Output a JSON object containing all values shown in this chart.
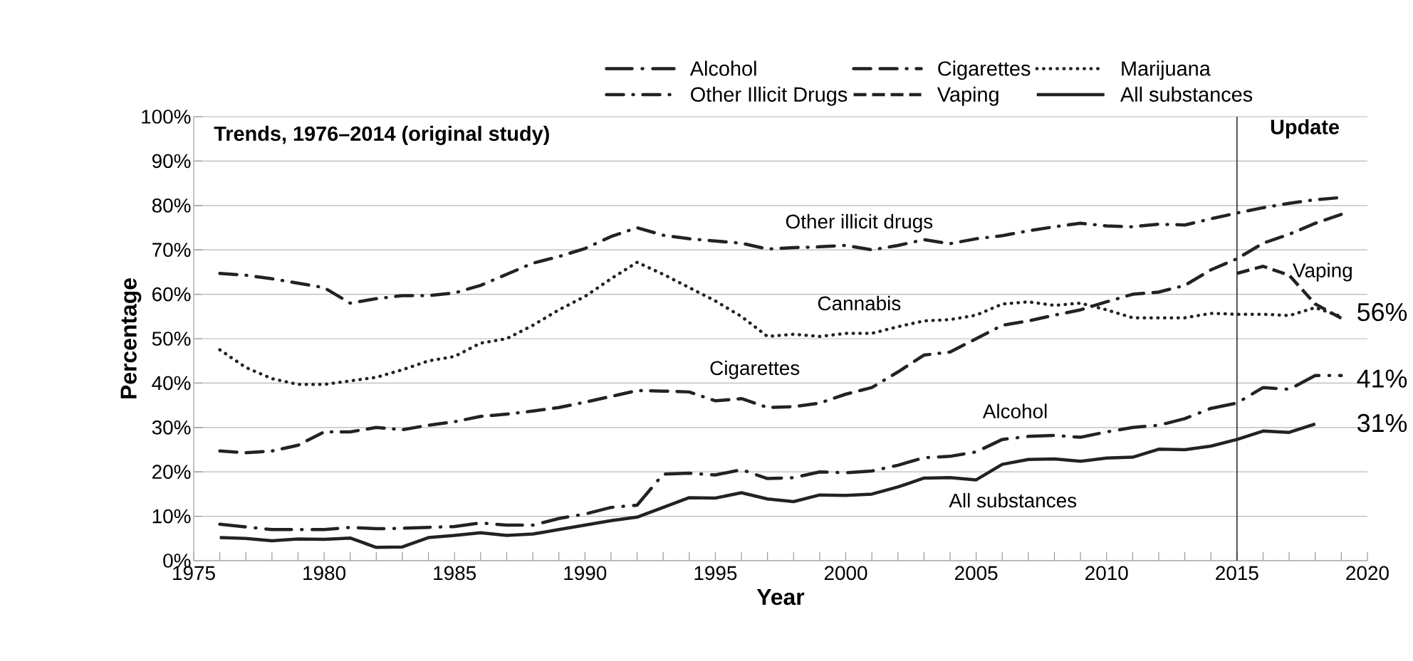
{
  "chart_data": {
    "type": "line",
    "title": "Trends, 1976–2014 (original study)",
    "xlabel": "Year",
    "ylabel": "Percentage",
    "x": [
      1976,
      1977,
      1978,
      1979,
      1980,
      1981,
      1982,
      1983,
      1984,
      1985,
      1986,
      1987,
      1988,
      1989,
      1990,
      1991,
      1992,
      1993,
      1994,
      1995,
      1996,
      1997,
      1998,
      1999,
      2000,
      2001,
      2002,
      2003,
      2004,
      2005,
      2006,
      2007,
      2008,
      2009,
      2010,
      2011,
      2012,
      2013,
      2014,
      2015,
      2016,
      2017,
      2018,
      2019
    ],
    "series": [
      {
        "name": "Alcohol",
        "color": "#222222",
        "line_style": "longdashdot",
        "values": [
          8.2,
          7.6,
          7.0,
          7.0,
          7.0,
          7.5,
          7.2,
          7.3,
          7.5,
          7.7,
          8.5,
          8.0,
          8.0,
          9.5,
          10.5,
          12,
          12.5,
          19.5,
          19.7,
          19.3,
          20.5,
          18.5,
          18.7,
          20,
          19.8,
          20.2,
          21.5,
          23.2,
          23.5,
          24.5,
          27.3,
          28,
          28.2,
          27.8,
          29,
          30,
          30.5,
          32,
          34.3,
          35.5,
          39,
          38.6,
          41.7,
          41.7
        ]
      },
      {
        "name": "Cigarettes",
        "color": "#222222",
        "line_style": "dashdashdot",
        "values": [
          24.7,
          24.3,
          24.7,
          26,
          29,
          29,
          30,
          29.5,
          30.5,
          31.3,
          32.5,
          33,
          33.7,
          34.5,
          35.7,
          37,
          38.3,
          38.2,
          38,
          36,
          36.5,
          34.5,
          34.7,
          35.5,
          37.5,
          39,
          42.5,
          46.3,
          47,
          50,
          53,
          54,
          55.3,
          56.5,
          58.3,
          60,
          60.5,
          62,
          65.5,
          68,
          71.5,
          73.5,
          76,
          78
        ]
      },
      {
        "name": "Marijuana",
        "color": "#222222",
        "line_style": "dotted",
        "values": [
          47.5,
          43.5,
          41,
          39.7,
          39.7,
          40.5,
          41.3,
          43,
          45,
          46,
          49,
          50,
          53,
          56.5,
          59.5,
          63.5,
          67.2,
          64.5,
          61.5,
          58.5,
          55,
          50.5,
          51,
          50.5,
          51.2,
          51.2,
          52.7,
          54,
          54.3,
          55.3,
          57.8,
          58.3,
          57.5,
          58,
          56.5,
          54.7,
          54.7,
          54.7,
          55.7,
          55.5,
          55.5,
          55.2,
          57,
          55
        ]
      },
      {
        "name": "Other Illicit Drugs",
        "color": "#222222",
        "line_style": "dashdot",
        "values": [
          64.7,
          64.3,
          63.5,
          62.5,
          61.5,
          58,
          59,
          59.7,
          59.7,
          60.3,
          62,
          64.5,
          67,
          68.5,
          70.3,
          73,
          75,
          73.3,
          72.5,
          72,
          71.5,
          70.2,
          70.5,
          70.7,
          71,
          70,
          71,
          72.3,
          71.4,
          72.5,
          73.2,
          74.3,
          75.2,
          76,
          75.4,
          75.2,
          75.8,
          75.6,
          77,
          78.3,
          79.5,
          80.5,
          81.3,
          81.8
        ]
      },
      {
        "name": "Vaping",
        "color": "#222222",
        "line_style": "dashed",
        "x": [
          2015,
          2016,
          2017,
          2018,
          2019
        ],
        "values": [
          64.7,
          66.3,
          64.3,
          57.8,
          54.6
        ]
      },
      {
        "name": "All substances",
        "color": "#222222",
        "line_style": "solid",
        "values": [
          5.2,
          5.0,
          4.5,
          4.9,
          4.8,
          5.1,
          3.0,
          3.1,
          5.2,
          5.7,
          6.3,
          5.7,
          6.0,
          7.0,
          8.0,
          9.0,
          9.8,
          12,
          14.2,
          14.1,
          15.3,
          13.9,
          13.3,
          14.8,
          14.7,
          15,
          16.6,
          18.6,
          18.7,
          18.2,
          21.7,
          22.8,
          22.9,
          22.4,
          23.1,
          23.3,
          25.1,
          25.0,
          25.8,
          27.3,
          29.2,
          28.9,
          30.8,
          null
        ]
      }
    ],
    "xlim": [
      1975,
      2020
    ],
    "xticks": [
      1975,
      1980,
      1985,
      1990,
      1995,
      2000,
      2005,
      2010,
      2015,
      2020
    ],
    "ylim": [
      0,
      100
    ],
    "yticks": [
      {
        "value": 0,
        "label": "0%"
      },
      {
        "value": 10,
        "label": "10%"
      },
      {
        "value": 20,
        "label": "20%"
      },
      {
        "value": 30,
        "label": "30%"
      },
      {
        "value": 40,
        "label": "40%"
      },
      {
        "value": 50,
        "label": "50%"
      },
      {
        "value": 60,
        "label": "60%"
      },
      {
        "value": 70,
        "label": "70%"
      },
      {
        "value": 80,
        "label": "80%"
      },
      {
        "value": 90,
        "label": "90%"
      },
      {
        "value": 100,
        "label": "100%"
      }
    ],
    "grid": "y",
    "legend": "top",
    "ref_lines": [
      {
        "axis": "x",
        "value": 2015,
        "label": "Update",
        "color": "#222222"
      }
    ],
    "annotations": [
      "Other illicit drugs",
      "Cannabis",
      "Cigarettes",
      "Alcohol",
      "All substances",
      "Vaping",
      "56%",
      "41%",
      "31%"
    ]
  }
}
